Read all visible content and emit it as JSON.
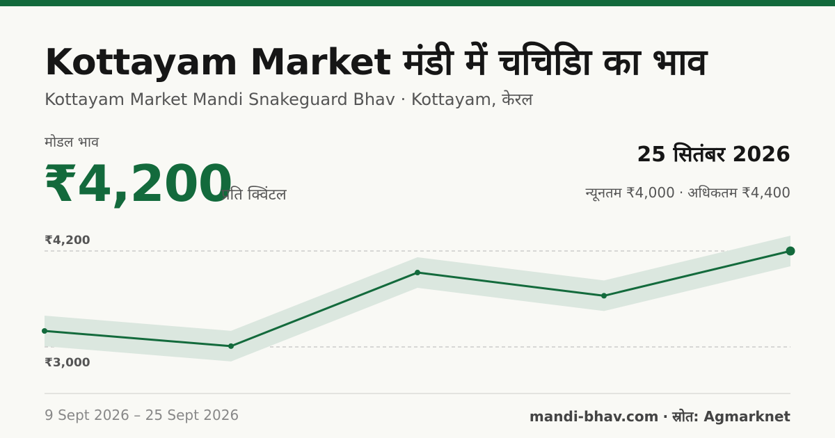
{
  "header": {
    "title": "Kottayam Market मंडी में चचिडिा का भाव",
    "subtitle": "Kottayam Market Mandi Snakeguard Bhav · Kottayam, केरल"
  },
  "price": {
    "label": "मोडल भाव",
    "value": "₹4,200",
    "unit": "प्रति क्विंटल"
  },
  "date": "25 सितंबर 2026",
  "range": {
    "min": "न्यूनतम ₹4,000",
    "separator": "·",
    "max": "अधिकतम ₹4,400"
  },
  "footer": {
    "period": "9 Sept 2026 – 25 Sept 2026",
    "site": "mandi-bhav.com",
    "separator": "·",
    "source": "स्रोत: Agmarknet"
  },
  "colors": {
    "accent": "#136a3c",
    "band": "#dbe7df",
    "gridline": "#b5b5b5"
  },
  "chart_data": {
    "type": "line",
    "title": "",
    "xlabel": "",
    "ylabel": "",
    "y_ticks": [
      {
        "value": 4200,
        "label": "₹4,200"
      },
      {
        "value": 3000,
        "label": "₹3,000"
      }
    ],
    "ylim": [
      3000,
      4200
    ],
    "grid": "dashed at tick values",
    "series": [
      {
        "values": [
          3200,
          3010,
          3930,
          3640,
          4200
        ]
      }
    ]
  }
}
